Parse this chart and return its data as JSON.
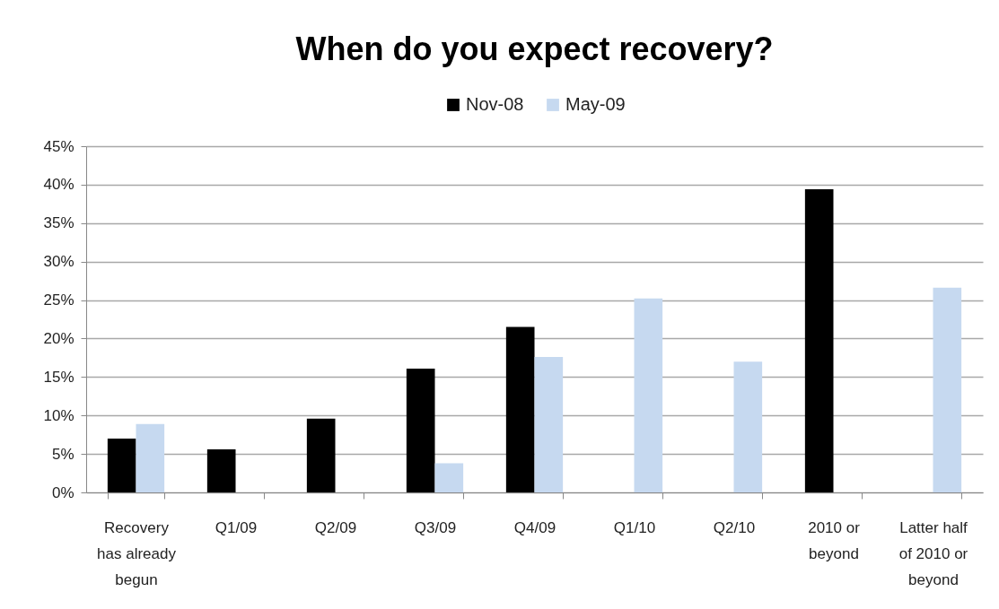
{
  "chart_data": {
    "type": "bar",
    "title": "When do you expect recovery?",
    "categories": [
      "Recovery has already begun",
      "Q1/09",
      "Q2/09",
      "Q3/09",
      "Q4/09",
      "Q1/10",
      "Q2/10",
      "2010 or beyond",
      "Latter half of 2010 or beyond"
    ],
    "series": [
      {
        "name": "Nov-08",
        "color": "#000000",
        "values": [
          7.0,
          5.6,
          9.6,
          16.1,
          21.5,
          null,
          null,
          39.4,
          null
        ]
      },
      {
        "name": "May-09",
        "color": "#c6d9f0",
        "values": [
          8.9,
          null,
          null,
          3.8,
          17.6,
          25.2,
          17.0,
          null,
          26.6
        ]
      }
    ],
    "ylim": [
      0,
      45
    ],
    "yticks": [
      {
        "value": 0,
        "label": "0%"
      },
      {
        "value": 5,
        "label": "5%"
      },
      {
        "value": 10,
        "label": "10%"
      },
      {
        "value": 15,
        "label": "15%"
      },
      {
        "value": 20,
        "label": "20%"
      },
      {
        "value": 25,
        "label": "25%"
      },
      {
        "value": 30,
        "label": "30%"
      },
      {
        "value": 35,
        "label": "35%"
      },
      {
        "value": 40,
        "label": "40%"
      },
      {
        "value": 45,
        "label": "45%"
      }
    ],
    "grid": "y",
    "legend": "top"
  }
}
